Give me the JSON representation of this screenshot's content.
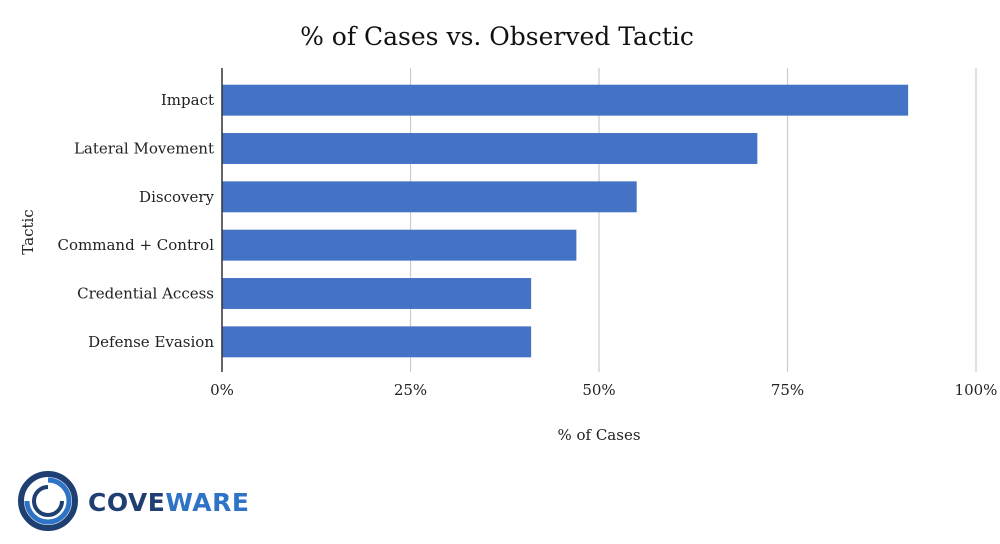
{
  "chart_data": {
    "type": "bar",
    "orientation": "horizontal",
    "title": "% of Cases vs. Observed Tactic",
    "xlabel": "% of Cases",
    "ylabel": "Tactic",
    "categories": [
      "Impact",
      "Lateral Movement",
      "Discovery",
      "Command + Control",
      "Credential Access",
      "Defense Evasion"
    ],
    "values": [
      91,
      71,
      55,
      47,
      41,
      41
    ],
    "xlim": [
      0,
      100
    ],
    "ticks": [
      0,
      25,
      50,
      75,
      100
    ],
    "tick_labels": [
      "0%",
      "25%",
      "50%",
      "75%",
      "100%"
    ],
    "grid": true,
    "bar_color": "#4472c4"
  },
  "logo": {
    "part1": "COVE",
    "part2": "WARE",
    "color_dark": "#1f3f73",
    "color_accent": "#2e73c6"
  }
}
